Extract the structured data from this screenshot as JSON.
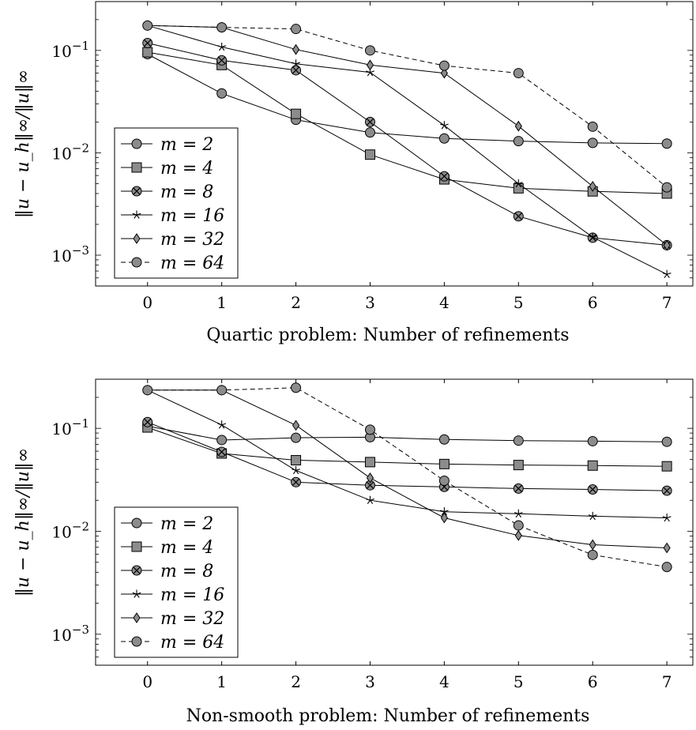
{
  "chart_data": [
    {
      "type": "line",
      "title": "",
      "xlabel": "Quartic problem: Number of refinements",
      "ylabel": "‖u − u_h‖∞/‖u‖∞",
      "yscale": "log",
      "xlim": [
        -0.7,
        7.35
      ],
      "ylim": [
        0.0005,
        0.3
      ],
      "x": [
        0,
        1,
        2,
        3,
        4,
        5,
        6,
        7
      ],
      "xticks": [
        "0",
        "1",
        "2",
        "3",
        "4",
        "5",
        "6",
        "7"
      ],
      "yticks": [
        {
          "value": 0.1,
          "base": "10",
          "exp": "−1"
        },
        {
          "value": 0.01,
          "base": "10",
          "exp": "−2"
        },
        {
          "value": 0.001,
          "base": "10",
          "exp": "−3"
        }
      ],
      "legend_position": "lower-left",
      "series": [
        {
          "name": "m = 2",
          "marker": "circle",
          "dash": false,
          "values": [
            0.092,
            0.038,
            0.021,
            0.0158,
            0.0138,
            0.013,
            0.0125,
            0.0123
          ]
        },
        {
          "name": "m = 4",
          "marker": "square",
          "dash": false,
          "values": [
            0.096,
            0.072,
            0.024,
            0.0096,
            0.0055,
            0.0045,
            0.0042,
            0.004
          ]
        },
        {
          "name": "m = 8",
          "marker": "otimes",
          "dash": false,
          "values": [
            0.118,
            0.08,
            0.064,
            0.02,
            0.0059,
            0.0024,
            0.00148,
            0.00125
          ]
        },
        {
          "name": "m = 16",
          "marker": "star",
          "dash": false,
          "values": [
            0.175,
            0.108,
            0.074,
            0.061,
            0.0185,
            0.005,
            0.0015,
            0.00065
          ]
        },
        {
          "name": "m = 32",
          "marker": "diamond",
          "dash": false,
          "values": [
            0.175,
            0.168,
            0.102,
            0.072,
            0.06,
            0.0182,
            0.0047,
            0.00125
          ]
        },
        {
          "name": "m = 64",
          "marker": "circle",
          "dash": true,
          "values": [
            0.175,
            0.168,
            0.162,
            0.1,
            0.071,
            0.06,
            0.018,
            0.0046
          ]
        }
      ]
    },
    {
      "type": "line",
      "title": "",
      "xlabel": "Non-smooth problem: Number of refinements",
      "ylabel": "‖u − u_h‖∞/‖u‖∞",
      "yscale": "log",
      "xlim": [
        -0.7,
        7.35
      ],
      "ylim": [
        0.0005,
        0.3
      ],
      "x": [
        0,
        1,
        2,
        3,
        4,
        5,
        6,
        7
      ],
      "xticks": [
        "0",
        "1",
        "2",
        "3",
        "4",
        "5",
        "6",
        "7"
      ],
      "yticks": [
        {
          "value": 0.1,
          "base": "10",
          "exp": "−1"
        },
        {
          "value": 0.01,
          "base": "10",
          "exp": "−2"
        },
        {
          "value": 0.001,
          "base": "10",
          "exp": "−3"
        }
      ],
      "legend_position": "lower-left",
      "series": [
        {
          "name": "m = 2",
          "marker": "circle",
          "dash": false,
          "values": [
            0.105,
            0.077,
            0.081,
            0.082,
            0.078,
            0.076,
            0.075,
            0.074
          ]
        },
        {
          "name": "m = 4",
          "marker": "square",
          "dash": false,
          "values": [
            0.102,
            0.057,
            0.049,
            0.047,
            0.045,
            0.044,
            0.0435,
            0.0428
          ]
        },
        {
          "name": "m = 8",
          "marker": "otimes",
          "dash": false,
          "values": [
            0.115,
            0.059,
            0.03,
            0.028,
            0.027,
            0.026,
            0.0255,
            0.0248
          ]
        },
        {
          "name": "m = 16",
          "marker": "star",
          "dash": false,
          "values": [
            0.235,
            0.108,
            0.039,
            0.02,
            0.0155,
            0.0148,
            0.014,
            0.0135
          ]
        },
        {
          "name": "m = 32",
          "marker": "diamond",
          "dash": false,
          "values": [
            0.235,
            0.235,
            0.107,
            0.033,
            0.0135,
            0.0091,
            0.0074,
            0.0069
          ]
        },
        {
          "name": "m = 64",
          "marker": "circle",
          "dash": true,
          "values": [
            0.235,
            0.235,
            0.248,
            0.097,
            0.031,
            0.0114,
            0.0059,
            0.0045
          ]
        }
      ]
    }
  ]
}
